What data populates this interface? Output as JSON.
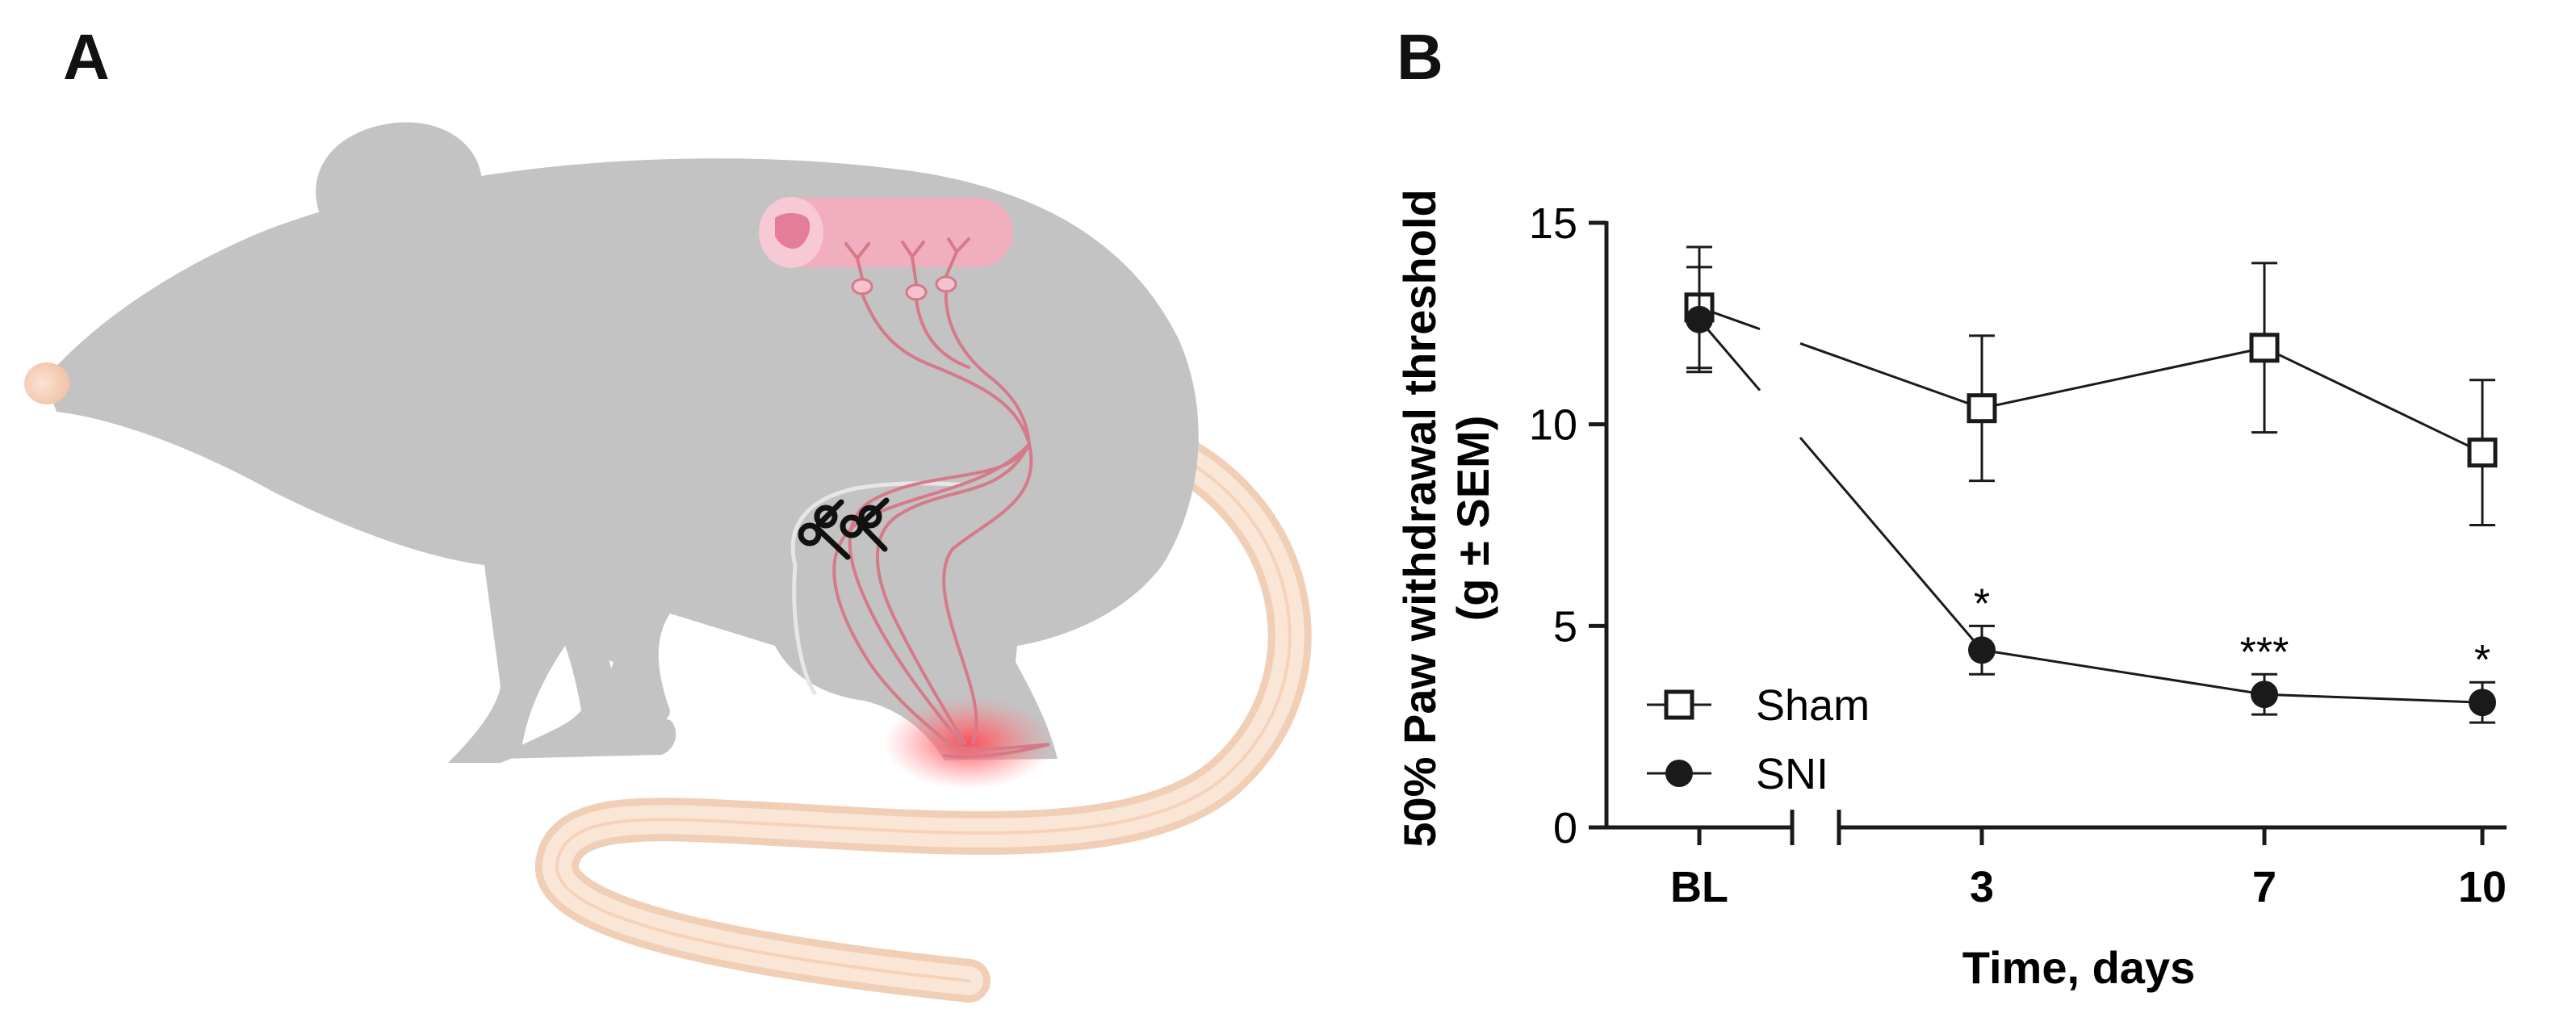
{
  "panel_a": {
    "label": "A"
  },
  "panel_b": {
    "label": "B"
  },
  "colors": {
    "mouse_body": "#c3c3c3",
    "tail": "#f7dcc6",
    "nerve": "#d67a8a",
    "spinal_cord": "#f1aebf",
    "glow": "#ff5a62",
    "line": "#1a1a1a"
  },
  "chart_data": {
    "type": "line",
    "categories": [
      "BL",
      "3",
      "7",
      "10"
    ],
    "x": [
      0,
      3,
      7,
      10
    ],
    "xlabel": "Time, days",
    "ylabel": "50% Paw withdrawal threshold\n(g ± SEM)",
    "ylim": [
      0,
      15
    ],
    "yticks": [
      "0",
      "5",
      "10",
      "15"
    ],
    "grid": false,
    "legend_position": "bottom-left",
    "axis_break": "between BL and 3",
    "series": [
      {
        "name": "Sham",
        "marker": "open-square",
        "values": [
          12.9,
          10.4,
          11.9,
          9.3
        ],
        "sem": [
          1.5,
          1.8,
          2.1,
          1.8
        ]
      },
      {
        "name": "SNI",
        "marker": "filled-circle",
        "values": [
          12.6,
          4.4,
          3.3,
          3.1
        ],
        "sem": [
          1.3,
          0.6,
          0.5,
          0.5
        ]
      }
    ],
    "annotations": [
      {
        "x": "3",
        "text": "*"
      },
      {
        "x": "7",
        "text": "***"
      },
      {
        "x": "10",
        "text": "*"
      }
    ]
  }
}
